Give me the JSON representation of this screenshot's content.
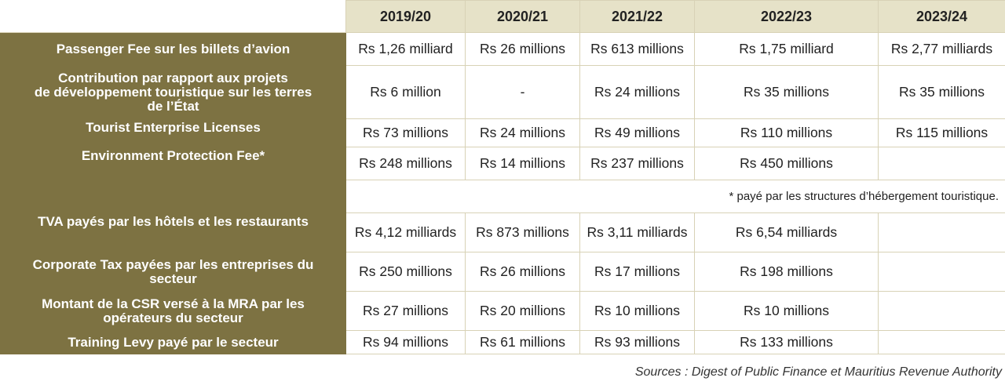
{
  "years": [
    "2019/20",
    "2020/21",
    "2021/22",
    "2022/23",
    "2023/24"
  ],
  "rows": [
    {
      "label": "Passenger Fee sur les billets d’avion",
      "values": [
        "Rs 1,26 milliard",
        "Rs 26 millions",
        "Rs 613 millions",
        "Rs 1,75 milliard",
        "Rs 2,77 milliards"
      ]
    },
    {
      "label_lines": [
        "Contribution par rapport aux projets",
        "de développement touristique sur les terres",
        "de l’État"
      ],
      "values": [
        "Rs 6 million",
        "-",
        "Rs 24 millions",
        "Rs 35 millions",
        "Rs 35 millions"
      ]
    },
    {
      "label": "Tourist Enterprise Licenses",
      "values": [
        "Rs 73 millions",
        "Rs 24 millions",
        "Rs 49 millions",
        "Rs 110 millions",
        "Rs 115 millions"
      ]
    },
    {
      "label": "Environment Protection Fee*",
      "values": [
        "Rs 248 millions",
        "Rs 14 millions",
        "Rs 237 millions",
        "Rs 450 millions",
        ""
      ]
    },
    {
      "label": "TVA payés par les hôtels et les restaurants",
      "values": [
        "Rs 4,12 milliards",
        "Rs 873 millions",
        "Rs 3,11 milliards",
        "Rs 6,54 milliards",
        ""
      ]
    },
    {
      "label_lines": [
        "Corporate Tax payées par les entreprises du",
        "secteur"
      ],
      "values": [
        "Rs 250 millions",
        "Rs 26 millions",
        "Rs 17 millions",
        "Rs 198 millions",
        ""
      ]
    },
    {
      "label_lines": [
        "Montant de la CSR versé à la MRA par les",
        "opérateurs du secteur"
      ],
      "values": [
        "Rs 27 millions",
        "Rs 20 millions",
        "Rs 10 millions",
        "Rs 10 millions",
        ""
      ]
    },
    {
      "label": "Training Levy payé par le secteur",
      "values": [
        "Rs 94 millions",
        "Rs 61 millions",
        "Rs 93 millions",
        "Rs 133 millions",
        ""
      ]
    }
  ],
  "footnote": "* payé par les structures d’hébergement touristique.",
  "sources": "Sources : Digest of Public Finance et Mauritius Revenue Authority"
}
